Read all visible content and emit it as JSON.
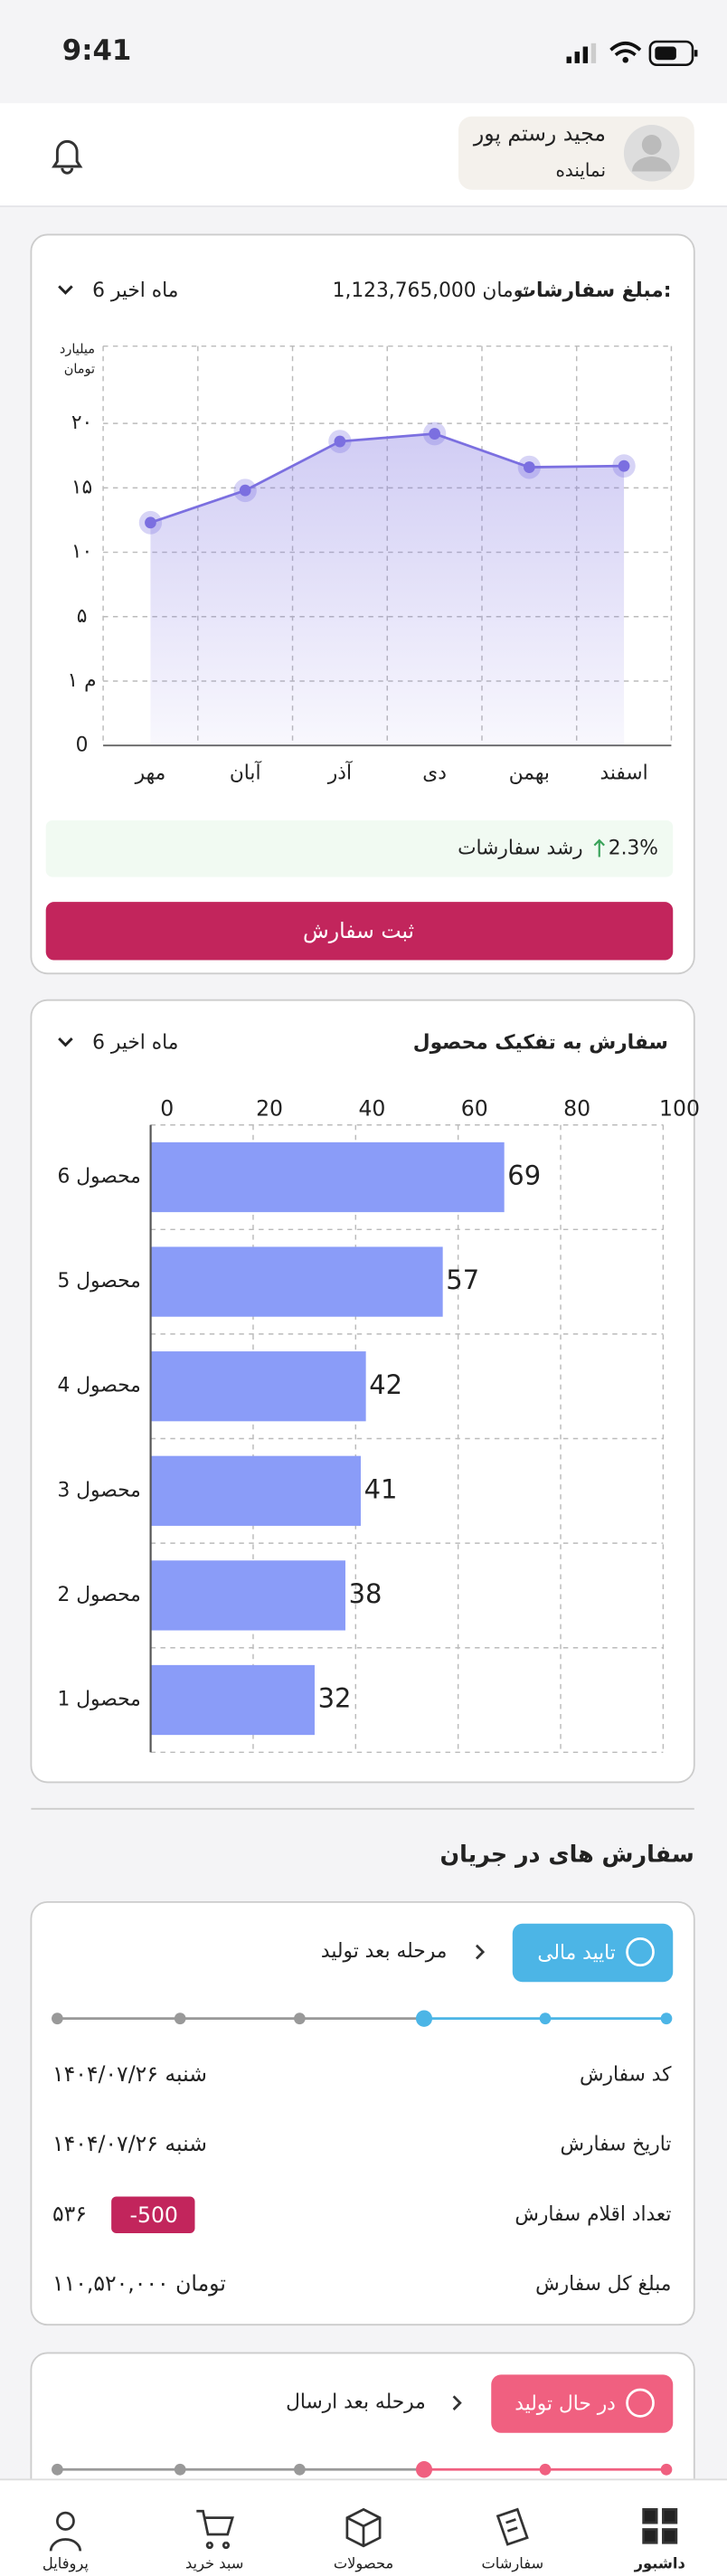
{
  "status_bar": {
    "time": "9:41"
  },
  "header": {
    "name": "مجید رستم پور",
    "role": "نماینده"
  },
  "chart_data": [
    {
      "type": "line",
      "title": "مبلغ سفارشات:",
      "total": "1,123,765,000 تومان",
      "period": "6 ماه اخیر",
      "y_label": [
        "میلیارد",
        "تومان"
      ],
      "categories": [
        "مهر",
        "آبان",
        "آذر",
        "دی",
        "بهمن",
        "اسفند"
      ],
      "values": [
        12.3,
        14.8,
        18.6,
        19.2,
        16.6,
        16.7
      ],
      "color": "#7b6fe0",
      "ylim": [
        0,
        26
      ],
      "yticks": [
        0,
        {
          "value": 1,
          "label": "۱ م"
        },
        {
          "value": 5,
          "label": "۵"
        },
        {
          "value": 10,
          "label": "۱۰"
        },
        {
          "value": 15,
          "label": "۱۵"
        },
        {
          "value": 20,
          "label": "۲۰"
        }
      ],
      "grid": true,
      "growth_value": "2.3%",
      "growth_label": "رشد سفارشات",
      "button": "ثبت سفارش"
    },
    {
      "type": "hbar",
      "title": "سفارش به تفکیک محصول",
      "period": "6 ماه اخیر",
      "categories": [
        "محصول 6",
        "محصول 5",
        "محصول 4",
        "محصول 3",
        "محصول 2",
        "محصول 1"
      ],
      "values": [
        69,
        57,
        42,
        41,
        38,
        32
      ],
      "color": "#8a9cf8",
      "xlim": [
        0,
        100
      ],
      "xticks": [
        0,
        20,
        40,
        60,
        80,
        100
      ],
      "grid": true
    }
  ],
  "orders": {
    "title": "سفارش های در جریان",
    "items": [
      {
        "status": "تایید مالی",
        "next_step": "مرحله بعد تولید",
        "fields": [
          {
            "label": "کد سفارش",
            "value": "شنبه ۱۴۰۴/۰۷/۲۶"
          },
          {
            "label": "تاریخ سفارش",
            "value": "شنبه ۱۴۰۴/۰۷/۲۶"
          },
          {
            "label": "تعداد اقلام سفارش",
            "value": "۵۳۶",
            "badge": "-500"
          },
          {
            "label": "مبلغ کل  سفارش",
            "value": "۱۱۰,۵۲۰,۰۰۰ تومان"
          }
        ]
      },
      {
        "status": "در حال تولید",
        "next_step": "مرحله بعد ارسال"
      }
    ]
  },
  "nav": [
    "پروفایل",
    "سبد خرید",
    "محصولات",
    "سفارشات",
    "داشبور"
  ]
}
